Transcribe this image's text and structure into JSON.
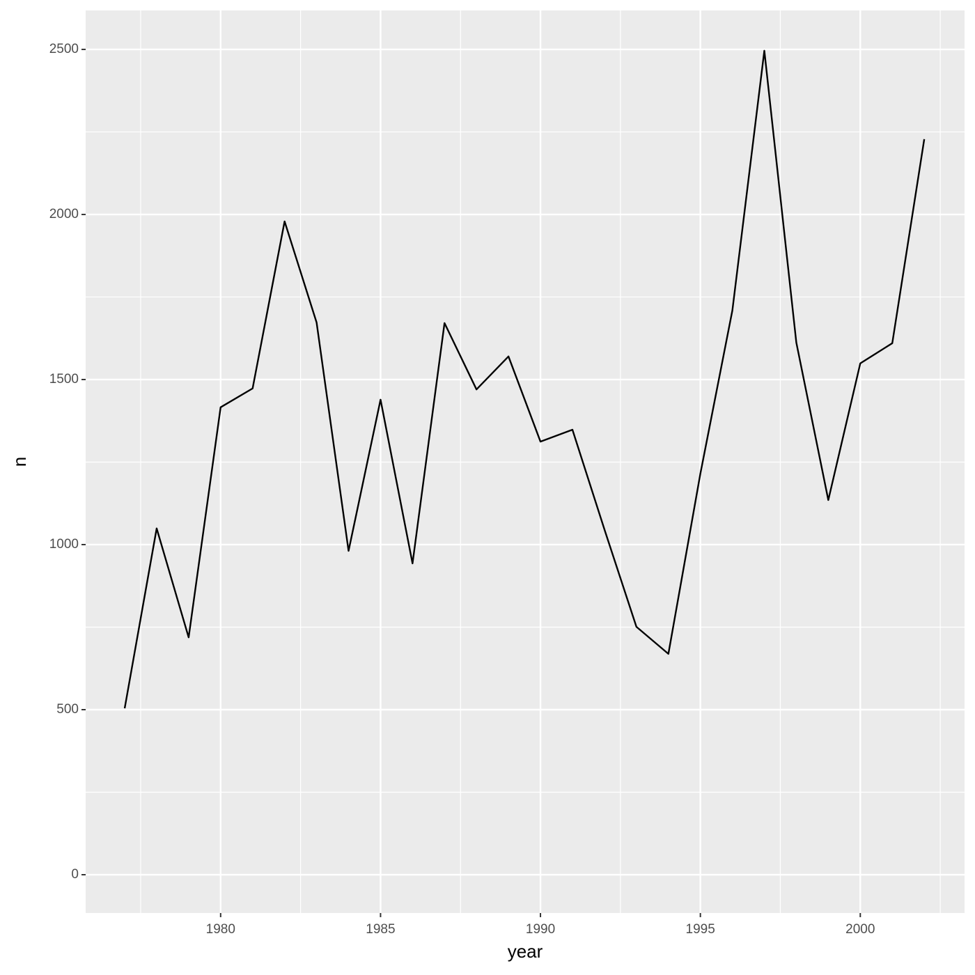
{
  "chart_data": {
    "type": "line",
    "x_label": "year",
    "y_label": "n",
    "x": [
      1977,
      1978,
      1979,
      1980,
      1981,
      1982,
      1983,
      1984,
      1985,
      1986,
      1987,
      1988,
      1989,
      1990,
      1991,
      1992,
      1993,
      1994,
      1995,
      1996,
      1997,
      1998,
      1999,
      2000,
      2001,
      2002
    ],
    "series": [
      {
        "color": "#000000",
        "values": [
          504,
          1049,
          719,
          1416,
          1473,
          1979,
          1673,
          981,
          1439,
          943,
          1671,
          1470,
          1570,
          1312,
          1348,
          1046,
          751,
          669,
          1215,
          1709,
          2496,
          1612,
          1135,
          1549,
          1610,
          2228
        ]
      }
    ],
    "xlim": [
      1975.78,
      2003.26
    ],
    "xticks": [
      1980,
      1985,
      1990,
      1995,
      2000
    ],
    "ylim": [
      -116,
      2618
    ],
    "yticks": [
      0,
      500,
      1000,
      1500,
      2000,
      2500
    ],
    "grid": true
  }
}
